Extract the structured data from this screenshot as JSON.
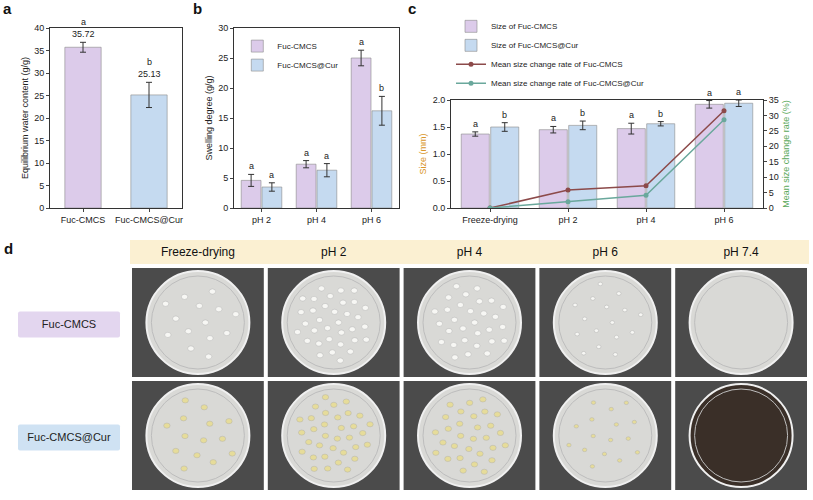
{
  "chart_data": [
    {
      "panel_label": "a",
      "type": "bar",
      "categories": [
        "Fuc-CMCS",
        "Fuc-CMCS@Cur"
      ],
      "values": [
        35.72,
        25.13
      ],
      "errors": [
        1.1,
        2.8
      ],
      "letters": [
        "a",
        "b"
      ],
      "colors": [
        "#dccbea",
        "#c5daf0"
      ],
      "y_label": "Equilibrium water content (g/g)",
      "ylim": [
        0,
        40
      ],
      "yticks": [
        0,
        5,
        10,
        15,
        20,
        25,
        30,
        35,
        40
      ],
      "data_labels": true,
      "grid": false
    },
    {
      "panel_label": "b",
      "type": "bar",
      "categories": [
        "pH 2",
        "pH 4",
        "pH 6"
      ],
      "series": [
        {
          "name": "Fuc-CMCS",
          "color": "#dccbea",
          "values": [
            4.6,
            7.3,
            25.0
          ],
          "errors": [
            1.0,
            0.6,
            1.3
          ],
          "letters": [
            "a",
            "a",
            "a"
          ]
        },
        {
          "name": "Fuc-CMCS@Cur",
          "color": "#c5daf0",
          "values": [
            3.5,
            6.3,
            16.2
          ],
          "errors": [
            0.7,
            1.1,
            2.4
          ],
          "letters": [
            "a",
            "a",
            "b"
          ]
        }
      ],
      "y_label": "Swelling degree (g/g)",
      "ylim": [
        0,
        30
      ],
      "yticks": [
        0,
        5,
        10,
        15,
        20,
        25,
        30
      ],
      "legend": "top-left",
      "grid": false
    },
    {
      "panel_label": "c",
      "type": "bar",
      "categories": [
        "Freeze-drying",
        "pH 2",
        "pH 4",
        "pH 6"
      ],
      "series": [
        {
          "name": "Size of Fuc-CMCS",
          "type": "bar",
          "color": "#dccbea",
          "values": [
            1.37,
            1.45,
            1.47,
            1.92
          ],
          "errors": [
            0.04,
            0.06,
            0.1,
            0.07
          ],
          "letters": [
            "a",
            "a",
            "a",
            "a"
          ]
        },
        {
          "name": "Size of Fuc-CMCS@Cur",
          "type": "bar",
          "color": "#c5daf0",
          "values": [
            1.5,
            1.53,
            1.56,
            1.94
          ],
          "errors": [
            0.08,
            0.08,
            0.04,
            0.06
          ],
          "letters": [
            "b",
            "b",
            "b",
            "a"
          ]
        },
        {
          "name": "Mean size change rate of Fuc-CMCS",
          "type": "line",
          "axis": "y2",
          "color": "#8c4a4a",
          "marker": "circle",
          "line_style": "solid",
          "values": [
            0,
            5.8,
            7.2,
            31.5
          ]
        },
        {
          "name": "Mean size change rate of Fuc-CMCS@Cur",
          "type": "line",
          "axis": "y2",
          "color": "#6aa89c",
          "marker": "circle",
          "line_style": "solid",
          "values": [
            0,
            2.0,
            4.1,
            28.6
          ]
        }
      ],
      "y_label": "Size (mm)",
      "y2_label": "Mean size change rate (%)",
      "ylim": [
        0,
        2.0
      ],
      "yticks": [
        {
          "value": 0,
          "label": "0.0"
        },
        {
          "value": 0.5,
          "label": "0.5"
        },
        {
          "value": 1.0,
          "label": "1.0"
        },
        {
          "value": 1.5,
          "label": "1.5"
        },
        {
          "value": 2.0,
          "label": "2.0"
        }
      ],
      "y2lim": [
        0,
        35
      ],
      "y2ticks": [
        0,
        5,
        10,
        15,
        20,
        25,
        30,
        35
      ],
      "legend": "above",
      "grid": false
    }
  ],
  "photo_panel": {
    "panel_label": "d",
    "columns": [
      "Freeze-drying",
      "pH 2",
      "pH 4",
      "pH 6",
      "pH 7.4"
    ],
    "rows": [
      "Fuc-CMCS",
      "Fuc-CMCS@Cur"
    ]
  }
}
